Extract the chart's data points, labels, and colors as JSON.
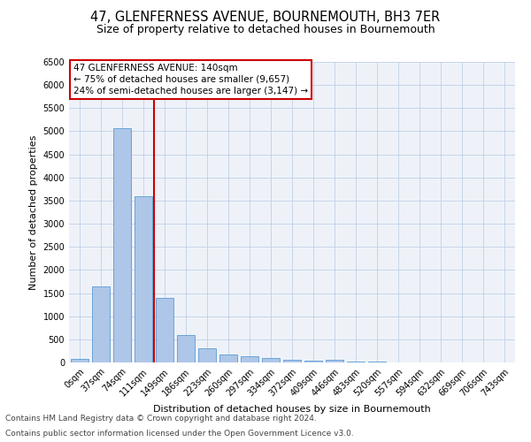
{
  "title": "47, GLENFERNESS AVENUE, BOURNEMOUTH, BH3 7ER",
  "subtitle": "Size of property relative to detached houses in Bournemouth",
  "xlabel": "Distribution of detached houses by size in Bournemouth",
  "ylabel": "Number of detached properties",
  "footnote1": "Contains HM Land Registry data © Crown copyright and database right 2024.",
  "footnote2": "Contains public sector information licensed under the Open Government Licence v3.0.",
  "bar_labels": [
    "0sqm",
    "37sqm",
    "74sqm",
    "111sqm",
    "149sqm",
    "186sqm",
    "223sqm",
    "260sqm",
    "297sqm",
    "334sqm",
    "372sqm",
    "409sqm",
    "446sqm",
    "483sqm",
    "520sqm",
    "557sqm",
    "594sqm",
    "632sqm",
    "669sqm",
    "706sqm",
    "743sqm"
  ],
  "bar_values": [
    75,
    1650,
    5075,
    3600,
    1400,
    600,
    310,
    165,
    130,
    95,
    60,
    40,
    55,
    15,
    10,
    8,
    5,
    4,
    3,
    3,
    3
  ],
  "bar_color": "#aec6e8",
  "bar_edge_color": "#5b9bd5",
  "vline_x": 4,
  "vline_color": "#cc0000",
  "annotation_line1": "47 GLENFERNESS AVENUE: 140sqm",
  "annotation_line2": "← 75% of detached houses are smaller (9,657)",
  "annotation_line3": "24% of semi-detached houses are larger (3,147) →",
  "annotation_box_color": "#cc0000",
  "ylim": [
    0,
    6500
  ],
  "yticks": [
    0,
    500,
    1000,
    1500,
    2000,
    2500,
    3000,
    3500,
    4000,
    4500,
    5000,
    5500,
    6000,
    6500
  ],
  "grid_color": "#c0d0e8",
  "bg_color": "#eef2f8",
  "title_fontsize": 10.5,
  "subtitle_fontsize": 9,
  "label_fontsize": 8,
  "tick_fontsize": 7,
  "annotation_fontsize": 7.5,
  "footnote_fontsize": 6.5
}
